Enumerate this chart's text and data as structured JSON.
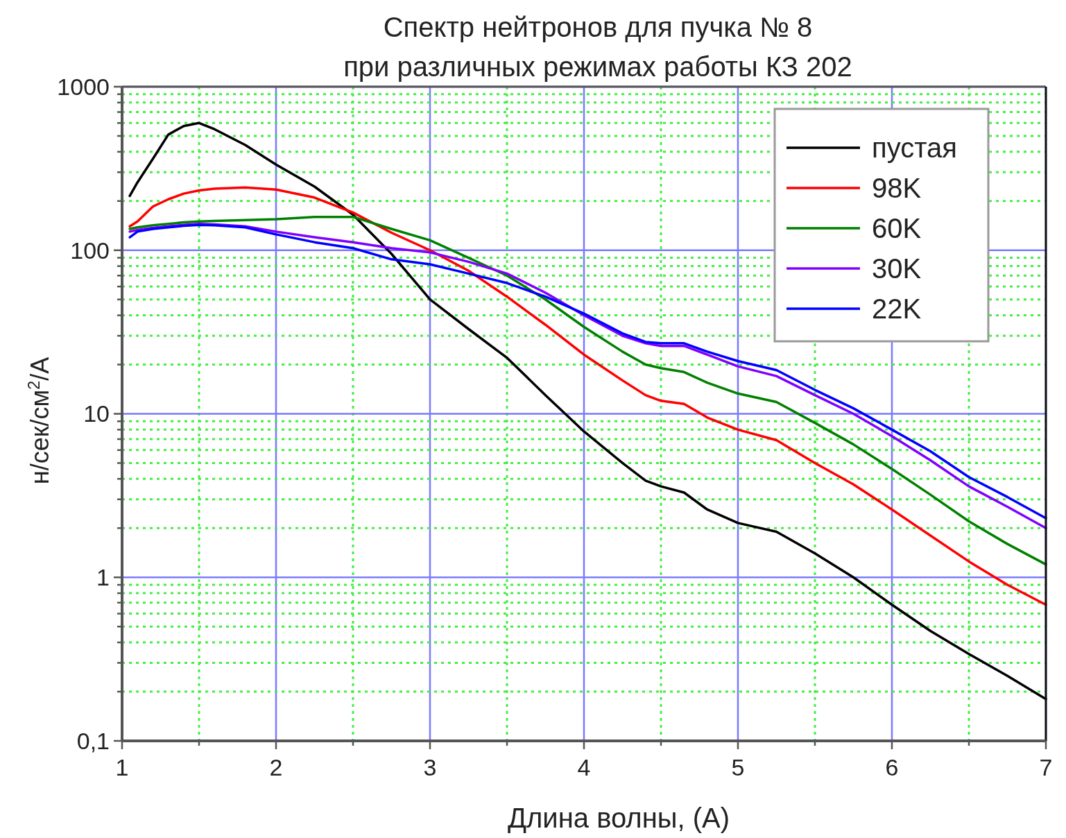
{
  "chart_data": {
    "type": "line",
    "title": "Спектр нейтронов для пучка № 8",
    "subtitle": "при различных режимах работы КЗ 202",
    "xlabel": "Длина волны, (А)",
    "ylabel": "н/сек/см$^{2}$/А",
    "x": [
      1.05,
      1.1,
      1.2,
      1.3,
      1.4,
      1.5,
      1.6,
      1.8,
      2.0,
      2.25,
      2.5,
      2.75,
      3.0,
      3.25,
      3.5,
      3.75,
      4.0,
      4.25,
      4.4,
      4.5,
      4.65,
      4.8,
      5.0,
      5.25,
      5.5,
      5.75,
      6.0,
      6.25,
      6.5,
      6.75,
      7.0
    ],
    "series": [
      {
        "name": "пустая",
        "color": "#000000",
        "values": [
          215,
          260,
          362,
          509,
          575,
          600,
          550,
          440,
          334,
          245,
          165,
          95,
          50,
          33,
          22,
          13,
          7.8,
          5,
          3.9,
          3.6,
          3.3,
          2.6,
          2.15,
          1.9,
          1.4,
          1.0,
          0.68,
          0.47,
          0.34,
          0.25,
          0.18
        ]
      },
      {
        "name": "98K",
        "color": "#ff0000",
        "values": [
          140,
          150,
          185,
          205,
          222,
          232,
          238,
          242,
          235,
          210,
          170,
          128,
          100,
          75,
          52,
          35,
          23,
          16,
          13,
          12,
          11.5,
          9.5,
          8.0,
          6.9,
          5.0,
          3.7,
          2.6,
          1.8,
          1.25,
          0.9,
          0.68
        ]
      },
      {
        "name": "60K",
        "color": "#008000",
        "values": [
          135,
          138,
          142,
          145,
          148,
          150,
          151,
          153,
          155,
          160,
          160,
          135,
          115,
          90,
          70,
          50,
          34,
          24,
          20,
          19,
          18,
          15.5,
          13.3,
          11.8,
          8.8,
          6.5,
          4.6,
          3.2,
          2.2,
          1.6,
          1.2
        ]
      },
      {
        "name": "30K",
        "color": "#8000ff",
        "values": [
          130,
          133,
          137,
          140,
          143,
          145,
          144,
          140,
          130,
          120,
          112,
          103,
          97,
          85,
          72,
          55,
          40,
          30,
          27,
          26,
          26,
          23,
          19.5,
          17,
          13,
          10,
          7.3,
          5.2,
          3.6,
          2.7,
          2.0
        ]
      },
      {
        "name": "22K",
        "color": "#0000ff",
        "values": [
          120,
          130,
          135,
          138,
          141,
          143,
          142,
          138,
          125,
          112,
          103,
          88,
          82,
          72,
          63,
          52,
          41,
          31,
          27.5,
          27,
          27,
          24,
          21,
          18.5,
          14,
          10.8,
          8.0,
          5.9,
          4.1,
          3.1,
          2.3
        ]
      }
    ],
    "xlim": [
      1,
      7
    ],
    "xticks": [
      1,
      {
        "value": 1.5,
        "label": null
      },
      2,
      {
        "value": 2.5,
        "label": null
      },
      3,
      {
        "value": 3.5,
        "label": null
      },
      4,
      {
        "value": 4.5,
        "label": null
      },
      5,
      {
        "value": 5.5,
        "label": null
      },
      6,
      {
        "value": 6.5,
        "label": null
      },
      7
    ],
    "ylim": [
      0.1,
      1000
    ],
    "log": true,
    "yticks": [
      {
        "value": 0.1,
        "label": "0,1"
      },
      {
        "value": 0.2,
        "label": null
      },
      {
        "value": 0.3,
        "label": null
      },
      {
        "value": 0.4,
        "label": null
      },
      {
        "value": 0.5,
        "label": null
      },
      {
        "value": 0.6,
        "label": null
      },
      {
        "value": 0.7,
        "label": null
      },
      {
        "value": 0.8,
        "label": null
      },
      {
        "value": 0.9,
        "label": null
      },
      1,
      {
        "value": 2,
        "label": null
      },
      {
        "value": 3,
        "label": null
      },
      {
        "value": 4,
        "label": null
      },
      {
        "value": 5,
        "label": null
      },
      {
        "value": 6,
        "label": null
      },
      {
        "value": 7,
        "label": null
      },
      {
        "value": 8,
        "label": null
      },
      {
        "value": 9,
        "label": null
      },
      10,
      {
        "value": 20,
        "label": null
      },
      {
        "value": 30,
        "label": null
      },
      {
        "value": 40,
        "label": null
      },
      {
        "value": 50,
        "label": null
      },
      {
        "value": 60,
        "label": null
      },
      {
        "value": 70,
        "label": null
      },
      {
        "value": 80,
        "label": null
      },
      {
        "value": 90,
        "label": null
      },
      100,
      {
        "value": 200,
        "label": null
      },
      {
        "value": 300,
        "label": null
      },
      {
        "value": 400,
        "label": null
      },
      {
        "value": 500,
        "label": null
      },
      {
        "value": 600,
        "label": null
      },
      {
        "value": 700,
        "label": null
      },
      {
        "value": 800,
        "label": null
      },
      {
        "value": 900,
        "label": null
      },
      1000
    ],
    "grid": true,
    "legend": "top right",
    "marker": "none",
    "line_style": "solid"
  }
}
